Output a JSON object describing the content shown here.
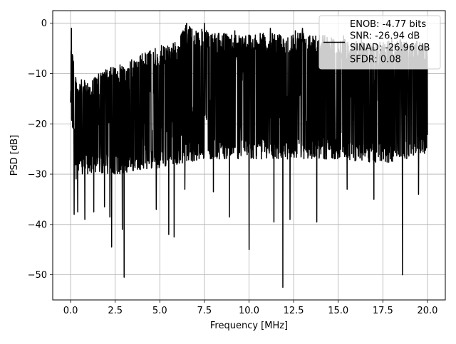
{
  "chart_data": {
    "type": "line",
    "title": "",
    "xlabel": "Frequency [MHz]",
    "ylabel": "PSD [dB]",
    "xlim": [
      -1.0,
      21.0
    ],
    "ylim": [
      -55.0,
      2.5
    ],
    "xticks": [
      0.0,
      2.5,
      5.0,
      7.5,
      10.0,
      12.5,
      15.0,
      17.5,
      20.0
    ],
    "xtick_labels": [
      "0.0",
      "2.5",
      "5.0",
      "7.5",
      "10.0",
      "12.5",
      "15.0",
      "17.5",
      "20.0"
    ],
    "yticks": [
      0,
      -10,
      -20,
      -30,
      -40,
      -50
    ],
    "ytick_labels": [
      "0",
      "−10",
      "−20",
      "−30",
      "−40",
      "−50"
    ],
    "grid": true,
    "legend_position": "top-right",
    "legend_lines": [
      "ENOB: -4.77 bits",
      "SNR: -26.94 dB",
      "SINAD: -26.96 dB",
      "SFDR: 0.08"
    ],
    "series": [
      {
        "color": "#000000",
        "x_range": [
          0.0,
          20.0
        ],
        "n_points": 2000,
        "envelope_upper": [
          [
            0.0,
            -1.0
          ],
          [
            0.3,
            -11.0
          ],
          [
            1.0,
            -11.5
          ],
          [
            2.0,
            -9.0
          ],
          [
            3.0,
            -8.0
          ],
          [
            4.0,
            -6.0
          ],
          [
            5.0,
            -4.5
          ],
          [
            6.0,
            -3.5
          ],
          [
            6.5,
            0.0
          ],
          [
            8.0,
            -2.0
          ],
          [
            10.0,
            -2.0
          ],
          [
            12.5,
            -2.0
          ],
          [
            13.0,
            -1.0
          ],
          [
            15.0,
            -3.0
          ],
          [
            17.0,
            -4.0
          ],
          [
            18.5,
            -3.0
          ],
          [
            20.0,
            -4.0
          ]
        ],
        "envelope_lower": [
          [
            0.0,
            -17.0
          ],
          [
            0.3,
            -31.0
          ],
          [
            1.0,
            -30.0
          ],
          [
            2.0,
            -30.0
          ],
          [
            3.0,
            -30.0
          ],
          [
            4.0,
            -29.0
          ],
          [
            5.0,
            -29.0
          ],
          [
            6.0,
            -28.0
          ],
          [
            7.5,
            -27.0
          ],
          [
            10.0,
            -27.0
          ],
          [
            12.5,
            -27.0
          ],
          [
            15.0,
            -27.0
          ],
          [
            17.5,
            -28.0
          ],
          [
            20.0,
            -26.0
          ]
        ],
        "dips": [
          [
            0.2,
            -38.0
          ],
          [
            0.4,
            -37.5
          ],
          [
            0.8,
            -39.0
          ],
          [
            1.3,
            -37.5
          ],
          [
            1.9,
            -36.5
          ],
          [
            2.2,
            -38.5
          ],
          [
            2.3,
            -44.5
          ],
          [
            2.9,
            -41.0
          ],
          [
            3.0,
            -50.5
          ],
          [
            4.8,
            -37.0
          ],
          [
            5.5,
            -42.0
          ],
          [
            5.8,
            -42.5
          ],
          [
            6.4,
            -33.0
          ],
          [
            8.0,
            -33.5
          ],
          [
            8.9,
            -38.5
          ],
          [
            10.0,
            -45.0
          ],
          [
            11.4,
            -39.5
          ],
          [
            11.9,
            -52.5
          ],
          [
            12.3,
            -39.0
          ],
          [
            13.8,
            -39.5
          ],
          [
            15.5,
            -33.0
          ],
          [
            17.0,
            -35.0
          ],
          [
            18.6,
            -50.0
          ],
          [
            19.5,
            -34.0
          ]
        ],
        "spikes": [
          [
            0.05,
            -1.0
          ],
          [
            6.5,
            0.0
          ],
          [
            7.5,
            0.0
          ],
          [
            13.0,
            -1.0
          ],
          [
            12.6,
            -1.5
          ],
          [
            9.2,
            -1.5
          ],
          [
            11.2,
            -1.0
          ],
          [
            8.6,
            -2.0
          ],
          [
            10.8,
            -2.0
          ],
          [
            16.3,
            -2.0
          ],
          [
            18.0,
            -3.0
          ],
          [
            15.3,
            -2.5
          ]
        ]
      }
    ]
  }
}
